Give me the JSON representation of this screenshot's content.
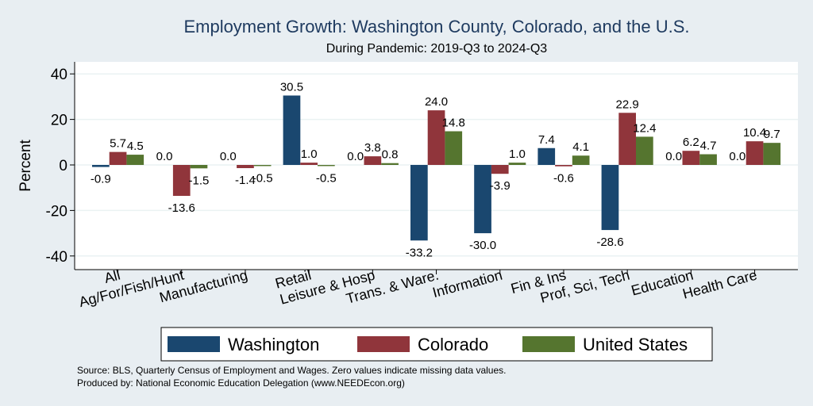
{
  "chart_data": {
    "type": "bar",
    "title": "Employment Growth: Washington County, Colorado, and the U.S.",
    "subtitle": "During Pandemic: 2019-Q3 to 2024-Q3",
    "ylabel": "Percent",
    "xlabel": "",
    "ylim": [
      -45,
      45
    ],
    "yticks": [
      -40,
      -20,
      0,
      20,
      40
    ],
    "ytick_labels": [
      "-40",
      "-20",
      "0",
      "20",
      "40"
    ],
    "grid": true,
    "legend_position": "bottom",
    "categories": [
      "All",
      "Ag/For/Fish/Hunt",
      "Manufacturing",
      "Retail",
      "Leisure & Hosp",
      "Trans. & Ware.",
      "Information",
      "Fin & Ins",
      "Prof, Sci, Tech",
      "Education",
      "Health Care"
    ],
    "series": [
      {
        "name": "Washington",
        "color": "#1a476f",
        "values": [
          -0.9,
          0.0,
          0.0,
          30.5,
          0.0,
          -33.2,
          -30.0,
          7.4,
          -28.6,
          0.0,
          0.0
        ],
        "labels": [
          "-0.9",
          "0.0",
          "0.0",
          "30.5",
          "0.0",
          "-33.2",
          "-30.0",
          "7.4",
          "-28.6",
          "0.0",
          "0.0"
        ]
      },
      {
        "name": "Colorado",
        "color": "#90353b",
        "values": [
          5.7,
          -13.6,
          -1.4,
          1.0,
          3.8,
          24.0,
          -3.9,
          -0.6,
          22.9,
          6.2,
          10.4
        ],
        "labels": [
          "5.7",
          "-13.6",
          "-1.4",
          "1.0",
          "3.8",
          "24.0",
          "-3.9",
          "-0.6",
          "22.9",
          "6.2",
          "10.4"
        ]
      },
      {
        "name": "United States",
        "color": "#55752f",
        "values": [
          4.5,
          -1.5,
          -0.5,
          -0.5,
          0.8,
          14.8,
          1.0,
          4.1,
          12.4,
          4.7,
          9.7
        ],
        "labels": [
          "4.5",
          "-1.5",
          "-0.5",
          "-0.5",
          "0.8",
          "14.8",
          "1.0",
          "4.1",
          "12.4",
          "4.7",
          "9.7"
        ]
      }
    ]
  },
  "footer": {
    "source": "Source: BLS, Quarterly Census of Employment and Wages. Zero values indicate missing data values.",
    "produced_by": "Produced by: National Economic Education Delegation (www.NEEDEcon.org)"
  }
}
